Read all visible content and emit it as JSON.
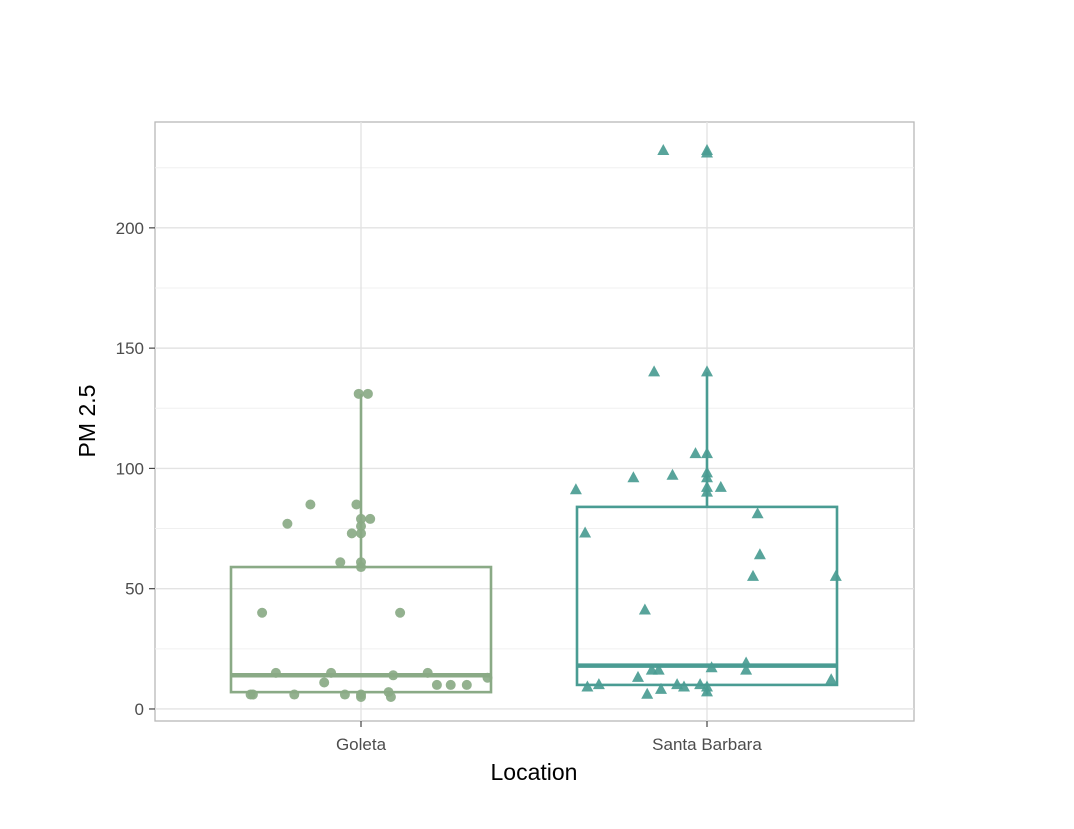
{
  "chart_data": {
    "type": "box",
    "title": "",
    "xlabel": "Location",
    "ylabel": "PM 2.5",
    "categories": [
      "Goleta",
      "Santa Barbara"
    ],
    "ylim": [
      -5,
      244
    ],
    "yticks": [
      0,
      50,
      100,
      150,
      200
    ],
    "grid": true,
    "legend": "none",
    "series": [
      {
        "name": "Goleta",
        "color": "#8aaa86",
        "marker": "circle",
        "box": {
          "q1": 7,
          "median": 14,
          "q3": 59,
          "whisker_low": 5,
          "whisker_high": 131
        },
        "points": [
          [
            -0.48,
            6
          ],
          [
            -0.47,
            6
          ],
          [
            -0.43,
            40
          ],
          [
            -0.37,
            15
          ],
          [
            -0.32,
            77
          ],
          [
            -0.29,
            6
          ],
          [
            -0.22,
            85
          ],
          [
            -0.16,
            11
          ],
          [
            -0.13,
            15
          ],
          [
            -0.09,
            61
          ],
          [
            -0.07,
            6
          ],
          [
            -0.04,
            73
          ],
          [
            -0.02,
            85
          ],
          [
            -0.01,
            131
          ],
          [
            0.0,
            79
          ],
          [
            0.0,
            76
          ],
          [
            0.0,
            73
          ],
          [
            0.0,
            61
          ],
          [
            0.0,
            59
          ],
          [
            0.0,
            5
          ],
          [
            0.0,
            6
          ],
          [
            0.03,
            131
          ],
          [
            0.04,
            79
          ],
          [
            0.12,
            7
          ],
          [
            0.13,
            5
          ],
          [
            0.14,
            14
          ],
          [
            0.17,
            40
          ],
          [
            0.29,
            15
          ],
          [
            0.33,
            10
          ],
          [
            0.39,
            10
          ],
          [
            0.46,
            10
          ],
          [
            0.55,
            13
          ]
        ]
      },
      {
        "name": "Santa Barbara",
        "color": "#4a9c93",
        "marker": "triangle",
        "box": {
          "q1": 10,
          "median": 18,
          "q3": 84,
          "whisker_low": 6,
          "whisker_high": 140
        },
        "points": [
          [
            -0.57,
            91
          ],
          [
            -0.53,
            73
          ],
          [
            -0.52,
            9
          ],
          [
            -0.47,
            10
          ],
          [
            -0.32,
            96
          ],
          [
            -0.3,
            13
          ],
          [
            -0.27,
            41
          ],
          [
            -0.26,
            6
          ],
          [
            -0.24,
            16
          ],
          [
            -0.23,
            140
          ],
          [
            -0.21,
            16
          ],
          [
            -0.2,
            8
          ],
          [
            -0.19,
            232
          ],
          [
            -0.15,
            97
          ],
          [
            -0.13,
            10
          ],
          [
            -0.1,
            9
          ],
          [
            -0.05,
            106
          ],
          [
            -0.03,
            10
          ],
          [
            0.0,
            232
          ],
          [
            0.0,
            231
          ],
          [
            0.0,
            140
          ],
          [
            0.0,
            106
          ],
          [
            0.0,
            98
          ],
          [
            0.0,
            96
          ],
          [
            0.0,
            92
          ],
          [
            0.0,
            90
          ],
          [
            0.0,
            9
          ],
          [
            0.0,
            7
          ],
          [
            0.02,
            17
          ],
          [
            0.06,
            92
          ],
          [
            0.17,
            19
          ],
          [
            0.17,
            16
          ],
          [
            0.2,
            55
          ],
          [
            0.22,
            81
          ],
          [
            0.23,
            64
          ],
          [
            0.54,
            12
          ],
          [
            0.56,
            55
          ]
        ]
      }
    ]
  }
}
